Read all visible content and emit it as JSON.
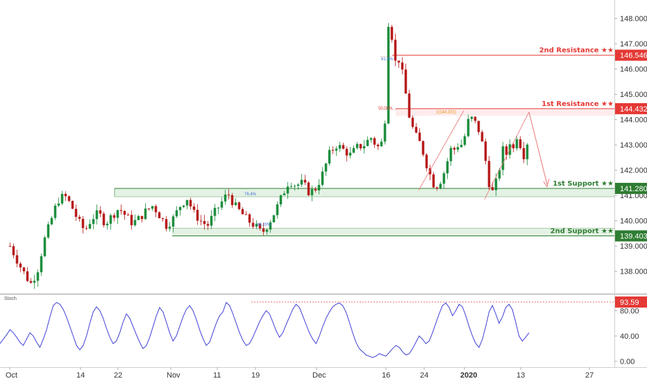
{
  "colors": {
    "up": "#1e8e3e",
    "down": "#b71c1c",
    "resistance": "#e53935",
    "support": "#2e7d32",
    "zone": "#c8e6c9",
    "stoch": "#3f3fd6",
    "arrow": "#e57373"
  },
  "chart_data": [
    {
      "type": "candlestick",
      "ylim": [
        137.5,
        148.4
      ],
      "y_ticks": [
        "148.000",
        "147.000",
        "146.000",
        "145.000",
        "144.000",
        "143.000",
        "142.000",
        "141.000",
        "140.000",
        "139.000",
        "138.000"
      ],
      "x_ticks": [
        "Oct",
        "14",
        "22",
        "Nov",
        "11",
        "19",
        "Dec",
        "16",
        "24",
        "2020",
        "13",
        "27"
      ],
      "levels": [
        {
          "name": "2nd Resistance",
          "label": "2nd Resistance ★★",
          "value": "146.546",
          "type": "resistance"
        },
        {
          "name": "1st Resistance",
          "label": "1st Resistance ★★",
          "value": "144.432",
          "type": "resistance"
        },
        {
          "name": "1st Support",
          "label": "1st Support ★★",
          "value": "141.280",
          "type": "support"
        },
        {
          "name": "2nd Support",
          "label": "2nd Support ★★",
          "value": "139.403",
          "type": "support"
        }
      ],
      "fib_labels": [
        "61.8%",
        "50.00%",
        "1(144.201)",
        "76.4%",
        "38.20%"
      ],
      "price_path": [
        [
          0,
          139.0
        ],
        [
          3,
          138.2
        ],
        [
          6,
          137.5
        ],
        [
          8,
          138.0
        ],
        [
          10,
          139.2
        ],
        [
          12,
          140.0
        ],
        [
          14,
          140.8
        ],
        [
          16,
          141.0
        ],
        [
          18,
          140.6
        ],
        [
          20,
          140.0
        ],
        [
          22,
          139.6
        ],
        [
          24,
          140.1
        ],
        [
          26,
          140.3
        ],
        [
          28,
          139.9
        ],
        [
          30,
          140.2
        ],
        [
          32,
          140.5
        ],
        [
          34,
          140.2
        ],
        [
          36,
          139.9
        ],
        [
          38,
          140.1
        ],
        [
          40,
          140.4
        ],
        [
          42,
          140.6
        ],
        [
          44,
          140.2
        ],
        [
          46,
          139.8
        ],
        [
          48,
          140.1
        ],
        [
          50,
          140.6
        ],
        [
          52,
          140.9
        ],
        [
          54,
          140.3
        ],
        [
          56,
          140.0
        ],
        [
          58,
          139.8
        ],
        [
          60,
          140.3
        ],
        [
          62,
          140.7
        ],
        [
          64,
          141.1
        ],
        [
          66,
          140.6
        ],
        [
          68,
          140.3
        ],
        [
          70,
          140.0
        ],
        [
          72,
          139.8
        ],
        [
          74,
          139.5
        ],
        [
          76,
          139.9
        ],
        [
          78,
          140.4
        ],
        [
          80,
          141.0
        ],
        [
          82,
          141.6
        ],
        [
          84,
          141.4
        ],
        [
          86,
          141.5
        ],
        [
          88,
          141.1
        ],
        [
          90,
          141.3
        ],
        [
          92,
          141.9
        ],
        [
          94,
          142.7
        ],
        [
          96,
          143.0
        ],
        [
          98,
          142.8
        ],
        [
          100,
          142.6
        ],
        [
          102,
          142.9
        ],
        [
          104,
          143.0
        ],
        [
          106,
          143.3
        ],
        [
          108,
          142.9
        ],
        [
          110,
          143.2
        ],
        [
          111,
          147.9
        ],
        [
          112,
          147.6
        ],
        [
          113,
          146.2
        ],
        [
          114,
          146.5
        ],
        [
          115,
          146.0
        ],
        [
          116,
          145.3
        ],
        [
          117,
          144.3
        ],
        [
          118,
          143.8
        ],
        [
          119,
          143.4
        ],
        [
          120,
          143.2
        ],
        [
          121,
          142.9
        ],
        [
          122,
          142.4
        ],
        [
          123,
          142.0
        ],
        [
          124,
          141.6
        ],
        [
          125,
          141.3
        ],
        [
          126,
          141.5
        ],
        [
          127,
          141.7
        ],
        [
          128,
          142.1
        ],
        [
          129,
          142.6
        ],
        [
          130,
          143.0
        ],
        [
          131,
          142.7
        ],
        [
          132,
          143.2
        ],
        [
          133,
          142.9
        ],
        [
          134,
          143.6
        ],
        [
          135,
          144.1
        ],
        [
          136,
          144.0
        ],
        [
          137,
          143.8
        ],
        [
          138,
          143.5
        ],
        [
          139,
          142.9
        ],
        [
          140,
          142.2
        ],
        [
          141,
          141.3
        ],
        [
          142,
          141.1
        ],
        [
          143,
          141.6
        ],
        [
          144,
          142.2
        ],
        [
          145,
          142.9
        ],
        [
          146,
          142.6
        ],
        [
          147,
          143.2
        ],
        [
          148,
          142.8
        ],
        [
          149,
          143.4
        ],
        [
          150,
          143.0
        ],
        [
          151,
          142.6
        ],
        [
          152,
          143.1
        ]
      ]
    },
    {
      "type": "line",
      "title": "Stoch",
      "ylim": [
        -0.5,
        98
      ],
      "y_ticks": [
        "80.00",
        "40.00",
        "0.00"
      ],
      "highlight": {
        "label": "93.59",
        "value": 93.59
      },
      "values": [
        28,
        35,
        42,
        50,
        45,
        38,
        30,
        25,
        35,
        45,
        40,
        30,
        22,
        35,
        50,
        70,
        88,
        93,
        90,
        82,
        70,
        55,
        40,
        25,
        18,
        25,
        40,
        60,
        78,
        86,
        80,
        68,
        52,
        38,
        28,
        32,
        45,
        62,
        75,
        68,
        55,
        42,
        30,
        20,
        25,
        38,
        55,
        72,
        85,
        78,
        62,
        45,
        32,
        40,
        55,
        70,
        82,
        88,
        80,
        66,
        50,
        36,
        25,
        30,
        45,
        60,
        72,
        78,
        93,
        88,
        75,
        60,
        45,
        33,
        25,
        28,
        38,
        50,
        62,
        72,
        80,
        75,
        62,
        48,
        38,
        45,
        58,
        70,
        82,
        90,
        85,
        72,
        58,
        45,
        35,
        28,
        40,
        55,
        68,
        78,
        86,
        90,
        92,
        88,
        78,
        62,
        45,
        30,
        20,
        15,
        10,
        8,
        6,
        8,
        12,
        10,
        8,
        14,
        20,
        25,
        22,
        15,
        10,
        12,
        20,
        30,
        40,
        35,
        28,
        32,
        45,
        60,
        75,
        88,
        92,
        85,
        72,
        80,
        90,
        86,
        72,
        55,
        40,
        28,
        22,
        35,
        55,
        78,
        88,
        75,
        60,
        70,
        85,
        90,
        82,
        62,
        40,
        32,
        38,
        45
      ]
    }
  ]
}
